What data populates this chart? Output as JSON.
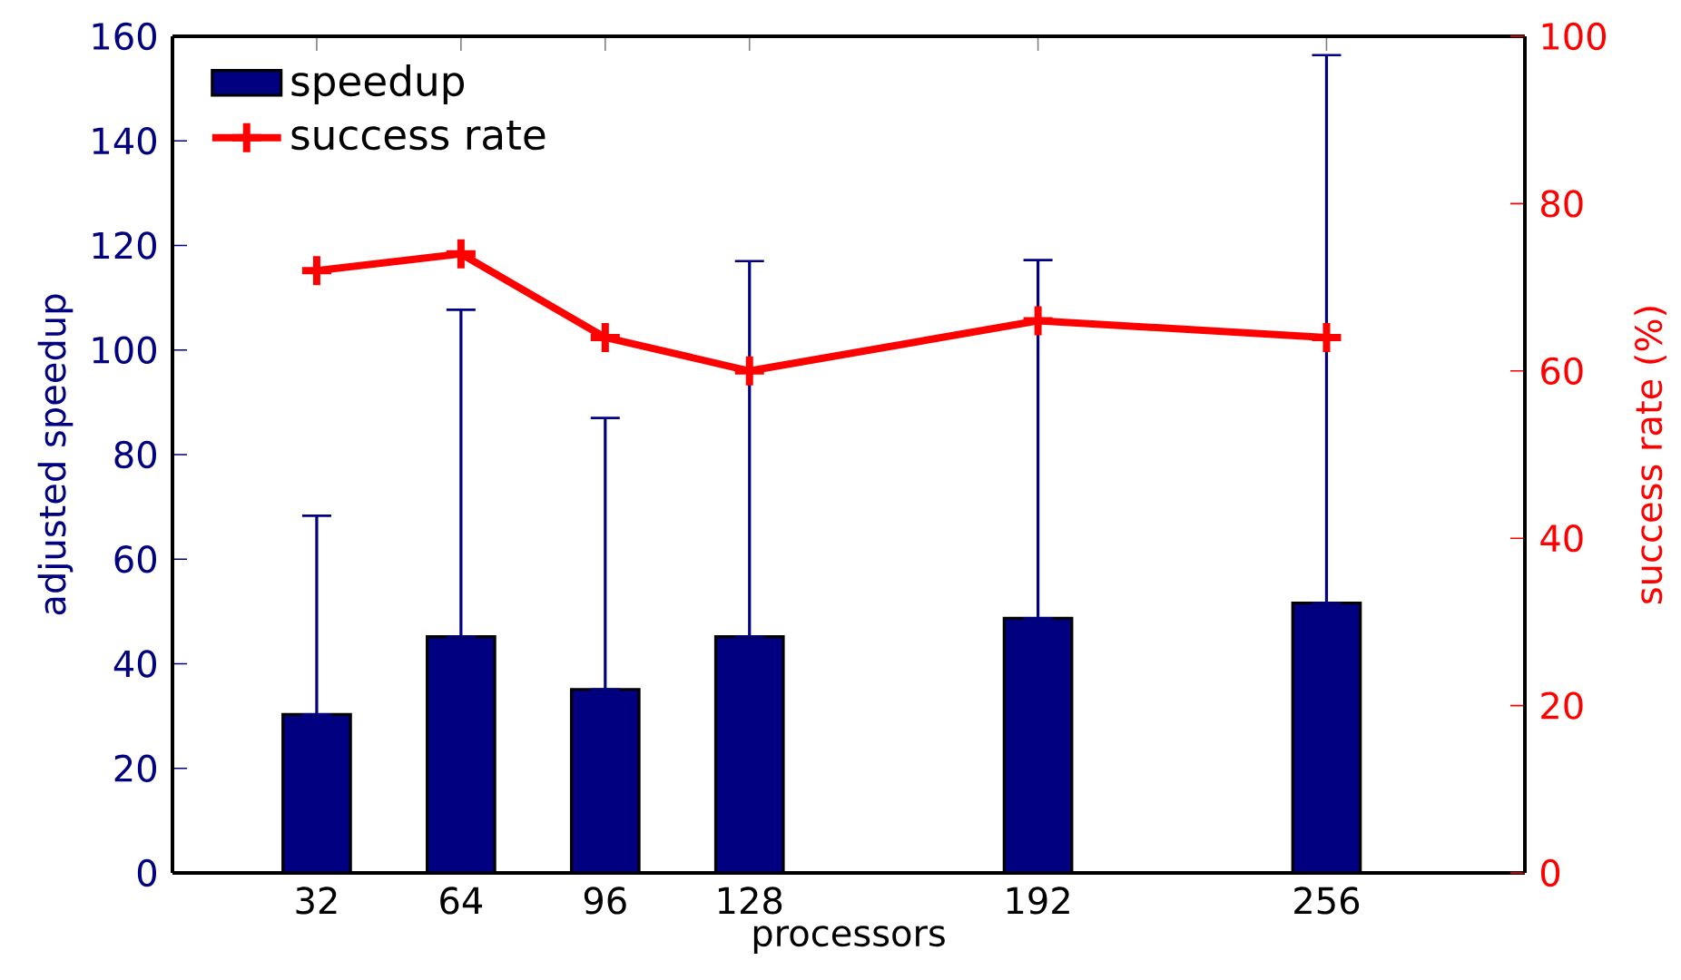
{
  "chart_data": {
    "type": "bar",
    "xlabel": "processors",
    "ylabel": "adjusted speedup",
    "y2label": "success rate (%)",
    "x": [
      32,
      64,
      96,
      128,
      192,
      256
    ],
    "xlim": [
      0,
      300
    ],
    "xticks": [
      32,
      64,
      96,
      128,
      192,
      256
    ],
    "ylim": [
      0,
      160
    ],
    "yticks": [
      0,
      20,
      40,
      60,
      80,
      100,
      120,
      140,
      160
    ],
    "y2lim": [
      0,
      100
    ],
    "y2ticks": [
      0,
      20,
      40,
      60,
      80,
      100
    ],
    "legend": "top left",
    "grid": false,
    "series": [
      {
        "name": "speedup",
        "color": "#000080",
        "values": [
          30.3,
          45.2,
          35.1,
          45.2,
          48.7,
          51.6
        ],
        "errors": [
          [
            30.3,
            68.3
          ],
          [
            45.2,
            107.7
          ],
          [
            35.1,
            87.0
          ],
          [
            45.2,
            117.0
          ],
          [
            48.7,
            117.2
          ],
          [
            51.6,
            156.4
          ]
        ]
      },
      {
        "name": "success rate",
        "type": "line",
        "axis": "y2",
        "color": "#ff0000",
        "marker": "cross",
        "line_style": "solid",
        "values": [
          72,
          74,
          64,
          60,
          66,
          64
        ]
      }
    ]
  }
}
